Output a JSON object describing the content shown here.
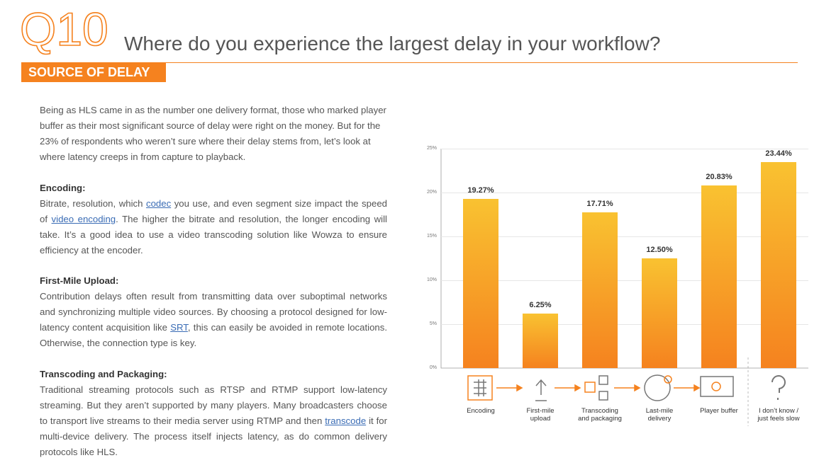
{
  "header": {
    "number": "Q10",
    "title": "Where do you experience the largest delay in your workflow?",
    "badge": "SOURCE OF DELAY"
  },
  "body": {
    "intro": "Being as HLS came in as the number one delivery format, those who marked player buffer as their most significant source of delay were right on the money. But for the 23% of respondents who weren’t sure where their delay stems from, let’s look at where latency creeps in from capture to playback.",
    "sections": [
      {
        "heading": "Encoding:",
        "text": [
          "Bitrate, resolution, which ",
          "codec",
          " you use, and even segment size impact the speed of ",
          "video encoding",
          ". The higher the bitrate and resolution, the longer encoding will take. It’s a good idea to use a video transcoding solution like Wowza to ensure efficiency at the encoder."
        ]
      },
      {
        "heading": "First-Mile Upload:",
        "text": [
          "Contribution delays often result from transmitting data over suboptimal networks and synchronizing multiple video sources. By choosing a protocol designed for low-latency content acquisition like ",
          "SRT",
          ", this can easily be avoided in remote locations. Otherwise, the connection type is key."
        ]
      },
      {
        "heading": "Transcoding and Packaging:",
        "text": [
          "Traditional streaming protocols such as RTSP and RTMP support low-latency streaming. But they aren’t supported by many players. Many broadcasters choose to transport live streams to their media server using RTMP and then ",
          "transcode",
          " it for multi-device delivery. The process itself injects latency, as do common delivery protocols like HLS."
        ]
      }
    ]
  },
  "chart_data": {
    "type": "bar",
    "categories": [
      "Encoding",
      "First-mile\nupload",
      "Transcoding\nand packaging",
      "Last-mile\ndelivery",
      "Player buffer",
      "I don’t know /\njust feels slow"
    ],
    "values": [
      19.27,
      6.25,
      17.71,
      12.5,
      20.83,
      23.44
    ],
    "value_labels": [
      "19.27%",
      "6.25%",
      "17.71%",
      "12.50%",
      "20.83%",
      "23.44%"
    ],
    "color": [
      "#f9c231",
      "#f5821f"
    ],
    "ylim": [
      0,
      25
    ],
    "yticks": [
      {
        "value": 0,
        "label": "0%"
      },
      {
        "value": 5,
        "label": "5%"
      },
      {
        "value": 10,
        "label": "10%"
      },
      {
        "value": 15,
        "label": "15%"
      },
      {
        "value": 20,
        "label": "20%"
      },
      {
        "value": 25,
        "label": "25%"
      }
    ],
    "grid": true
  }
}
